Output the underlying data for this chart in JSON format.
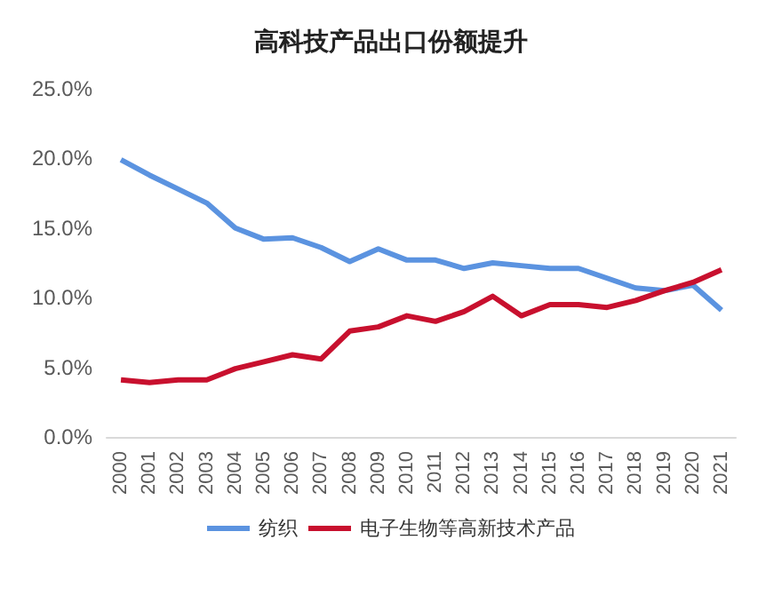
{
  "chart_data": {
    "type": "line",
    "title": "高科技产品出口份额提升",
    "categories": [
      "2000",
      "2001",
      "2002",
      "2003",
      "2004",
      "2005",
      "2006",
      "2007",
      "2008",
      "2009",
      "2010",
      "2011",
      "2012",
      "2013",
      "2014",
      "2015",
      "2016",
      "2017",
      "2018",
      "2019",
      "2020",
      "2021"
    ],
    "series": [
      {
        "name": "纺织",
        "color": "#5b93e0",
        "values": [
          19.9,
          18.8,
          17.8,
          16.8,
          15.0,
          14.2,
          14.3,
          13.6,
          12.6,
          13.5,
          12.7,
          12.7,
          12.1,
          12.5,
          12.3,
          12.1,
          12.1,
          11.4,
          10.7,
          10.5,
          10.9,
          9.1
        ]
      },
      {
        "name": "电子生物等高新技术产品",
        "color": "#c8102e",
        "values": [
          4.1,
          3.9,
          4.1,
          4.1,
          4.9,
          5.4,
          5.9,
          5.6,
          7.6,
          7.9,
          8.7,
          8.3,
          9.0,
          10.1,
          8.7,
          9.5,
          9.5,
          9.3,
          9.8,
          10.5,
          11.1,
          12.0
        ]
      }
    ],
    "ylim": [
      0,
      25
    ],
    "yticks": [
      {
        "value": 0,
        "label": "0.0%"
      },
      {
        "value": 5,
        "label": "5.0%"
      },
      {
        "value": 10,
        "label": "10.0%"
      },
      {
        "value": 15,
        "label": "15.0%"
      },
      {
        "value": 20,
        "label": "20.0%"
      },
      {
        "value": 25,
        "label": "25.0%"
      }
    ],
    "grid": false,
    "legend": "bottom",
    "marker": "none",
    "line_style": "solid"
  }
}
